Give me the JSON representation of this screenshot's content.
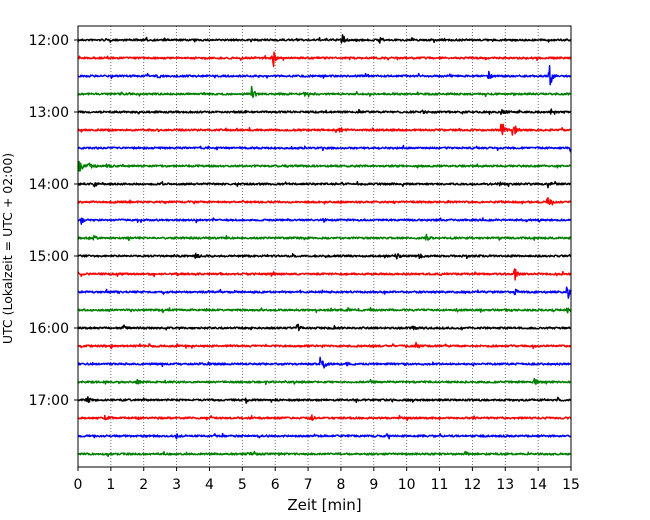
{
  "chart_data": {
    "type": "line",
    "title": "",
    "xlabel": "Zeit  [min]",
    "ylabel": "UTC (Lokalzeit = UTC + 02:00)",
    "xlim": [
      0,
      15
    ],
    "x_ticks": [
      "0",
      "1",
      "2",
      "3",
      "4",
      "5",
      "6",
      "7",
      "8",
      "9",
      "10",
      "11",
      "12",
      "13",
      "14",
      "15"
    ],
    "y_ticks": [
      "12:00",
      "13:00",
      "14:00",
      "15:00",
      "16:00",
      "17:00"
    ],
    "grid": "vertical dotted at each minute",
    "trace_colors": [
      "#000000",
      "#ff0000",
      "#0000ff",
      "#008000"
    ],
    "series": [
      {
        "start": "12:00",
        "color": "#000000",
        "events": [
          [
            8.05,
            6
          ],
          [
            9.2,
            3
          ]
        ]
      },
      {
        "start": "12:15",
        "color": "#ff0000",
        "events": [
          [
            5.95,
            8
          ]
        ]
      },
      {
        "start": "12:30",
        "color": "#0000ff",
        "events": [
          [
            14.35,
            14
          ],
          [
            12.5,
            4
          ],
          [
            2.4,
            2
          ]
        ]
      },
      {
        "start": "12:45",
        "color": "#008000",
        "events": [
          [
            5.3,
            9
          ],
          [
            6.9,
            2
          ]
        ]
      },
      {
        "start": "13:00",
        "color": "#000000",
        "events": [
          [
            10.5,
            3
          ],
          [
            12.9,
            3
          ],
          [
            14.4,
            2
          ]
        ]
      },
      {
        "start": "13:15",
        "color": "#ff0000",
        "events": [
          [
            12.9,
            9
          ],
          [
            13.25,
            10
          ],
          [
            8.0,
            2
          ],
          [
            9.0,
            2
          ]
        ]
      },
      {
        "start": "13:30",
        "color": "#0000ff",
        "events": [
          [
            15.0,
            4
          ]
        ]
      },
      {
        "start": "13:45",
        "color": "#008000",
        "events": [
          [
            0.05,
            10
          ],
          [
            0.35,
            4
          ],
          [
            0.9,
            3
          ]
        ]
      },
      {
        "start": "14:00",
        "color": "#000000",
        "events": [
          [
            0.5,
            3
          ],
          [
            12.8,
            3
          ],
          [
            14.3,
            4
          ]
        ]
      },
      {
        "start": "14:15",
        "color": "#ff0000",
        "events": [
          [
            14.3,
            4
          ]
        ]
      },
      {
        "start": "14:30",
        "color": "#0000ff",
        "events": [
          [
            0.1,
            4
          ],
          [
            7.5,
            2
          ]
        ]
      },
      {
        "start": "14:45",
        "color": "#008000",
        "events": [
          [
            10.6,
            3
          ],
          [
            0.5,
            2
          ]
        ]
      },
      {
        "start": "15:00",
        "color": "#000000",
        "events": [
          [
            3.6,
            3
          ],
          [
            9.7,
            3
          ],
          [
            10.4,
            2
          ]
        ]
      },
      {
        "start": "15:15",
        "color": "#ff0000",
        "events": [
          [
            13.3,
            6
          ],
          [
            1.2,
            2
          ]
        ]
      },
      {
        "start": "15:30",
        "color": "#0000ff",
        "events": [
          [
            14.9,
            8
          ],
          [
            13.3,
            3
          ]
        ]
      },
      {
        "start": "15:45",
        "color": "#008000",
        "events": [
          [
            8.2,
            2
          ],
          [
            14.9,
            2
          ]
        ]
      },
      {
        "start": "16:00",
        "color": "#000000",
        "events": [
          [
            6.7,
            4
          ],
          [
            1.4,
            2
          ],
          [
            10.2,
            2
          ]
        ]
      },
      {
        "start": "16:15",
        "color": "#ff0000",
        "events": [
          [
            10.3,
            4
          ],
          [
            1.0,
            2
          ]
        ]
      },
      {
        "start": "16:30",
        "color": "#0000ff",
        "events": [
          [
            7.4,
            13
          ],
          [
            8.2,
            2
          ]
        ]
      },
      {
        "start": "16:45",
        "color": "#008000",
        "events": [
          [
            13.9,
            4
          ],
          [
            1.8,
            2
          ]
        ]
      },
      {
        "start": "17:00",
        "color": "#000000",
        "events": [
          [
            0.3,
            3
          ],
          [
            5.1,
            3
          ],
          [
            14.6,
            2
          ]
        ]
      },
      {
        "start": "17:15",
        "color": "#ff0000",
        "events": [
          [
            0.85,
            3
          ],
          [
            7.1,
            3
          ]
        ]
      },
      {
        "start": "17:30",
        "color": "#0000ff",
        "events": [
          [
            3.0,
            2
          ],
          [
            9.4,
            2
          ]
        ]
      },
      {
        "start": "17:45",
        "color": "#008000",
        "events": [
          [
            5.2,
            2
          ],
          [
            11.8,
            2
          ]
        ]
      }
    ]
  }
}
